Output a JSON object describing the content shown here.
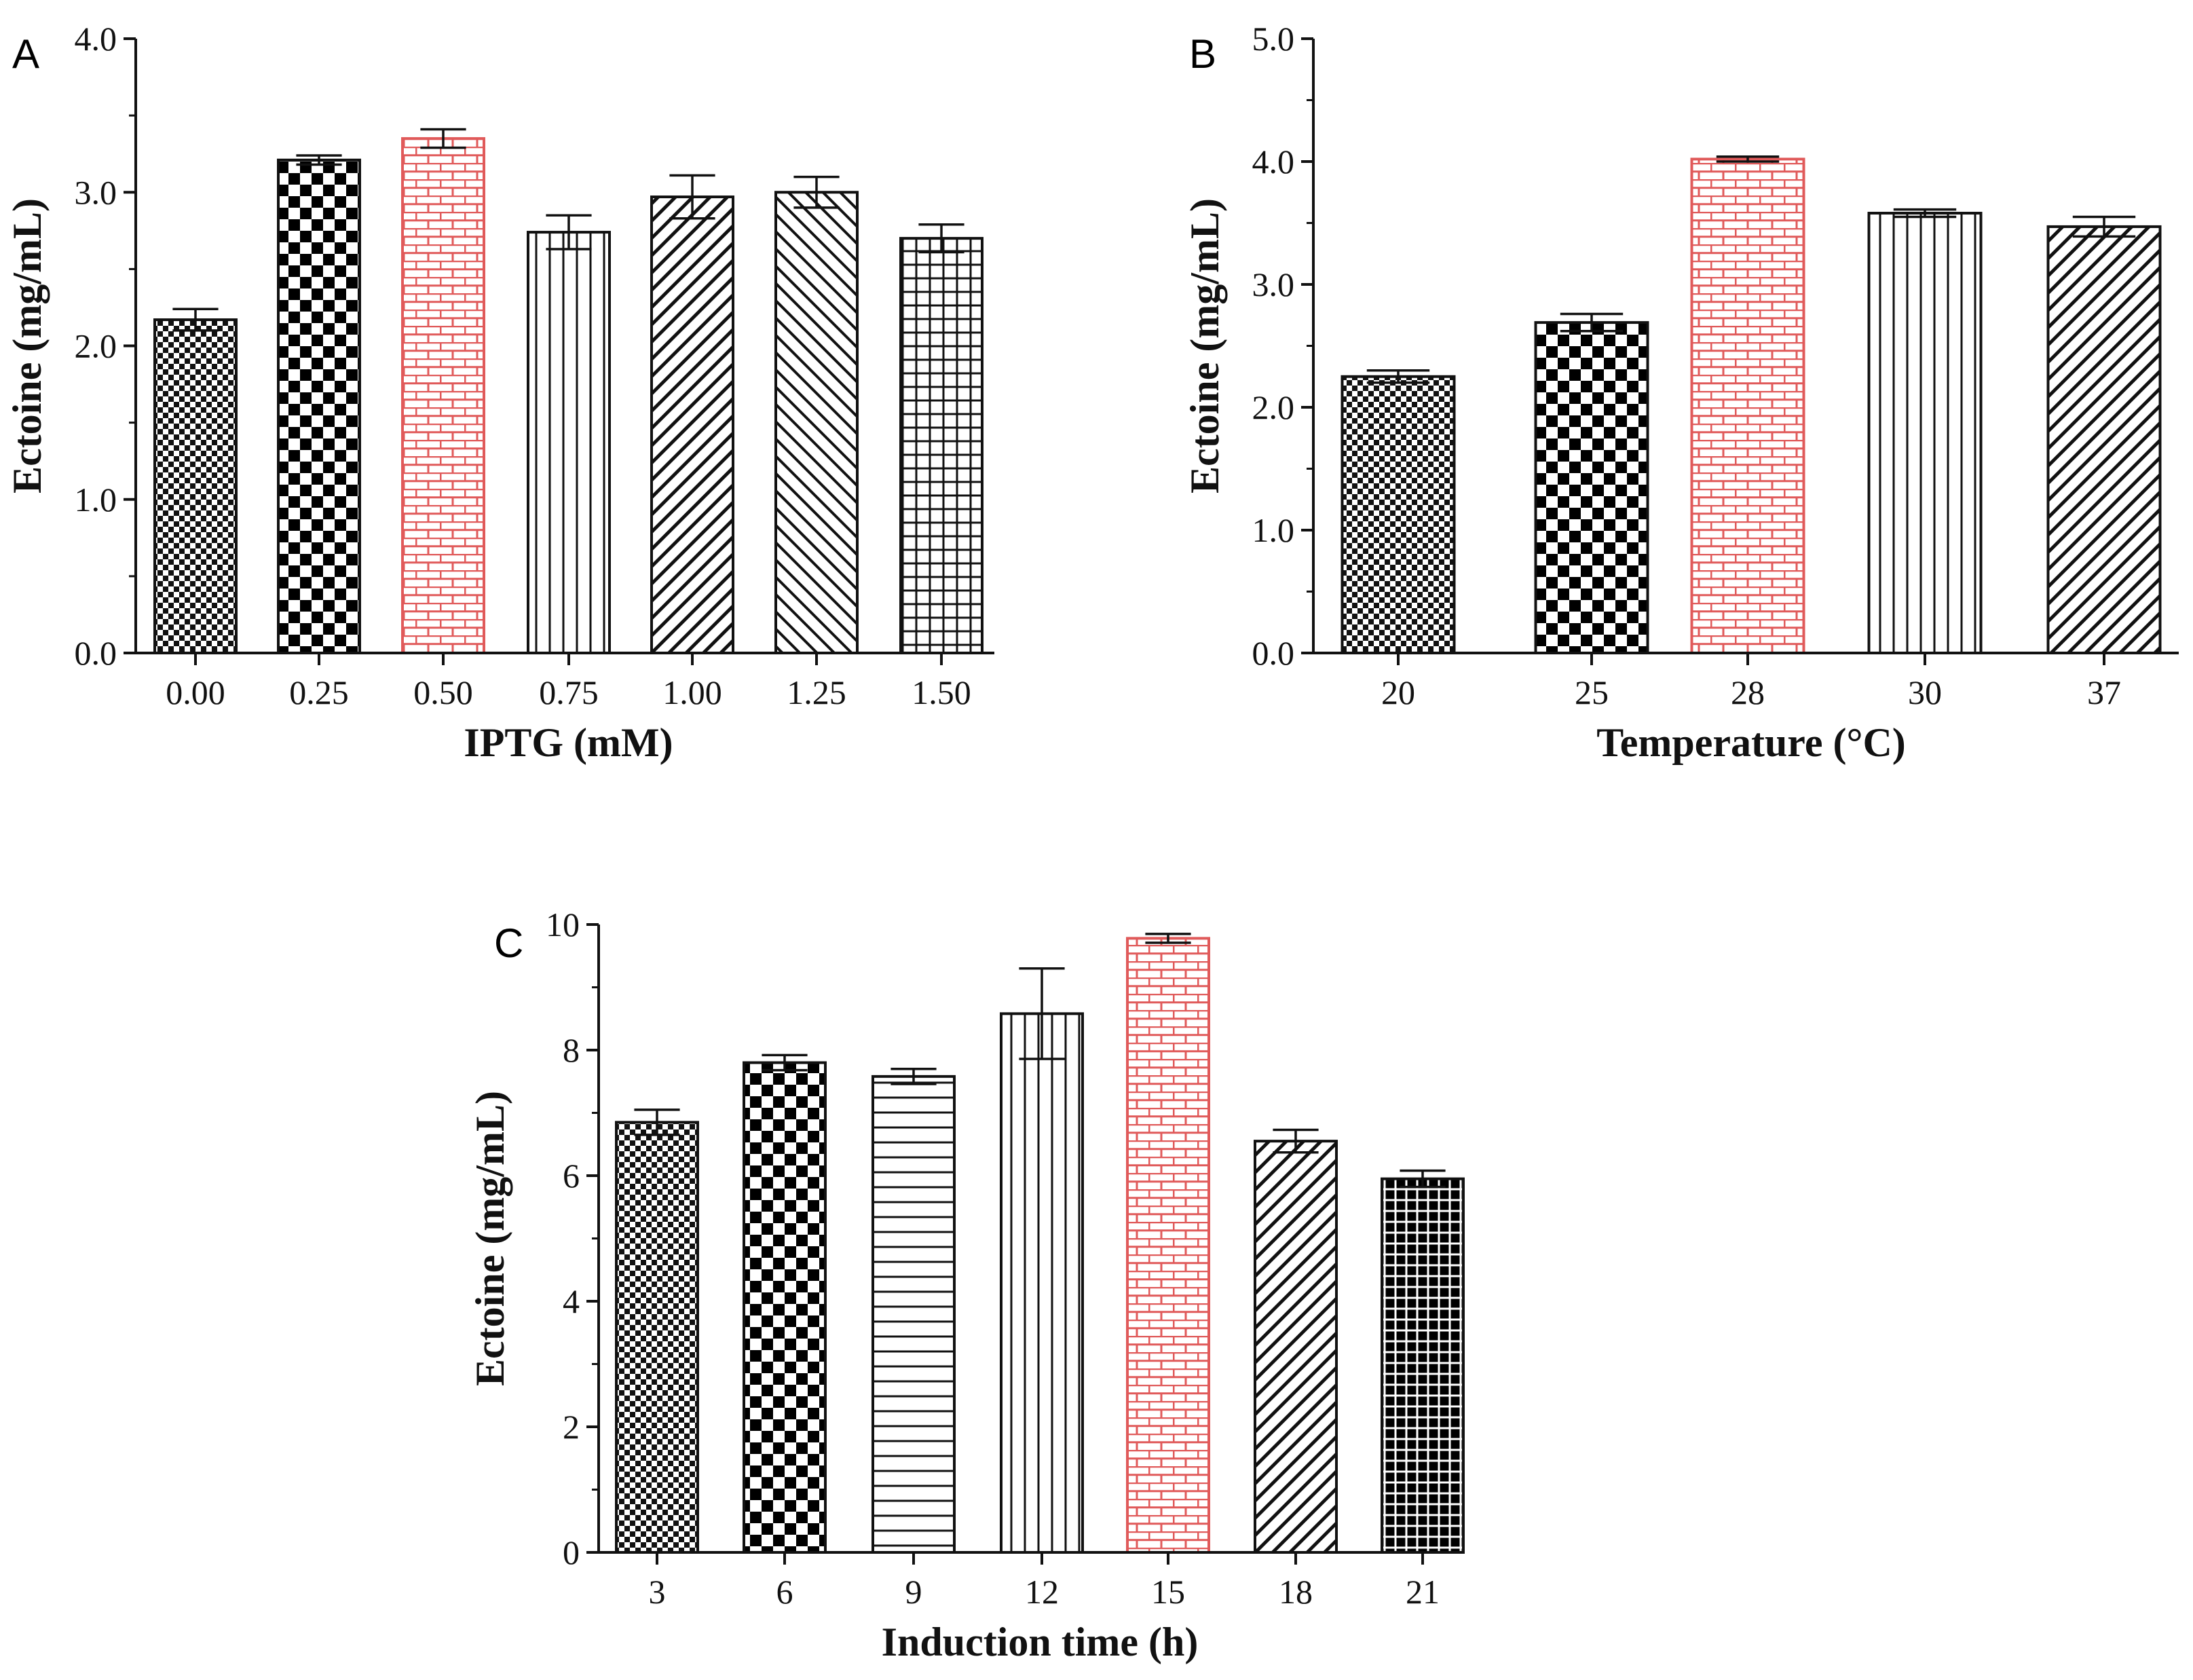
{
  "chart_data": [
    {
      "panel_label": "A",
      "type": "bar",
      "xlabel": "IPTG (mM)",
      "ylabel": "Ectoine (mg/mL)",
      "ylim": [
        0,
        4
      ],
      "yticks": [
        "0.0",
        "1.0",
        "2.0",
        "3.0",
        "4.0"
      ],
      "categories": [
        "0.00",
        "0.25",
        "0.50",
        "0.75",
        "1.00",
        "1.25",
        "1.50"
      ],
      "values": [
        2.17,
        3.21,
        3.35,
        2.74,
        2.97,
        3.0,
        2.7
      ],
      "errors": [
        0.07,
        0.03,
        0.06,
        0.11,
        0.14,
        0.1,
        0.09
      ],
      "patterns": [
        "fine-checker",
        "checker",
        "brick",
        "vertical",
        "diagonal",
        "diagonal-back",
        "grid"
      ],
      "grid": false,
      "highlight_color": "#e05a5a"
    },
    {
      "panel_label": "B",
      "type": "bar",
      "xlabel": "Temperature (°C)",
      "ylabel": "Ectoine (mg/mL)",
      "ylim": [
        0,
        5
      ],
      "yticks": [
        "0.0",
        "1.0",
        "2.0",
        "3.0",
        "4.0",
        "5.0"
      ],
      "categories": [
        "20",
        "25",
        "28",
        "30",
        "37"
      ],
      "values": [
        2.25,
        2.69,
        4.02,
        3.58,
        3.47
      ],
      "errors": [
        0.05,
        0.07,
        0.02,
        0.03,
        0.08
      ],
      "patterns": [
        "fine-checker",
        "checker",
        "brick",
        "vertical",
        "diagonal"
      ],
      "grid": false,
      "highlight_color": "#e05a5a"
    },
    {
      "panel_label": "C",
      "type": "bar",
      "xlabel": "Induction time (h)",
      "ylabel": "Ectoine (mg/mL)",
      "ylim": [
        0,
        10
      ],
      "yticks": [
        "0",
        "2",
        "4",
        "6",
        "8",
        "10"
      ],
      "categories": [
        "3",
        "6",
        "9",
        "12",
        "15",
        "18",
        "21"
      ],
      "values": [
        6.85,
        7.8,
        7.58,
        8.58,
        9.78,
        6.55,
        5.95
      ],
      "errors": [
        0.2,
        0.12,
        0.12,
        0.72,
        0.07,
        0.18,
        0.13
      ],
      "patterns": [
        "fine-checker",
        "checker",
        "horizontal",
        "vertical",
        "brick",
        "diagonal",
        "black-grid"
      ],
      "grid": false,
      "highlight_color": "#e05a5a"
    }
  ]
}
